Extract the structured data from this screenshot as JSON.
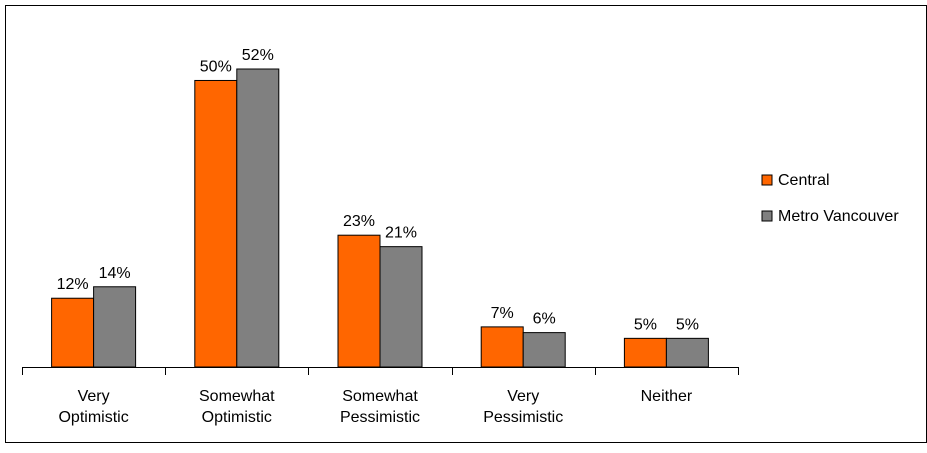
{
  "chart_data": {
    "type": "bar",
    "categories": [
      [
        "Very",
        "Optimistic"
      ],
      [
        "Somewhat",
        "Optimistic"
      ],
      [
        "Somewhat",
        "Pessimistic"
      ],
      [
        "Very",
        "Pessimistic"
      ],
      [
        "Neither"
      ]
    ],
    "series": [
      {
        "name": "Central",
        "values": [
          12,
          50,
          23,
          7,
          5
        ],
        "labels": [
          "12%",
          "50%",
          "23%",
          "7%",
          "5%"
        ],
        "color": "#FF6600"
      },
      {
        "name": "Metro Vancouver",
        "values": [
          14,
          52,
          21,
          6,
          5
        ],
        "labels": [
          "14%",
          "52%",
          "21%",
          "6%",
          "5%"
        ],
        "color": "#808080"
      }
    ],
    "ylim": [
      0,
      60
    ],
    "grid": false,
    "legend_position": "right"
  }
}
